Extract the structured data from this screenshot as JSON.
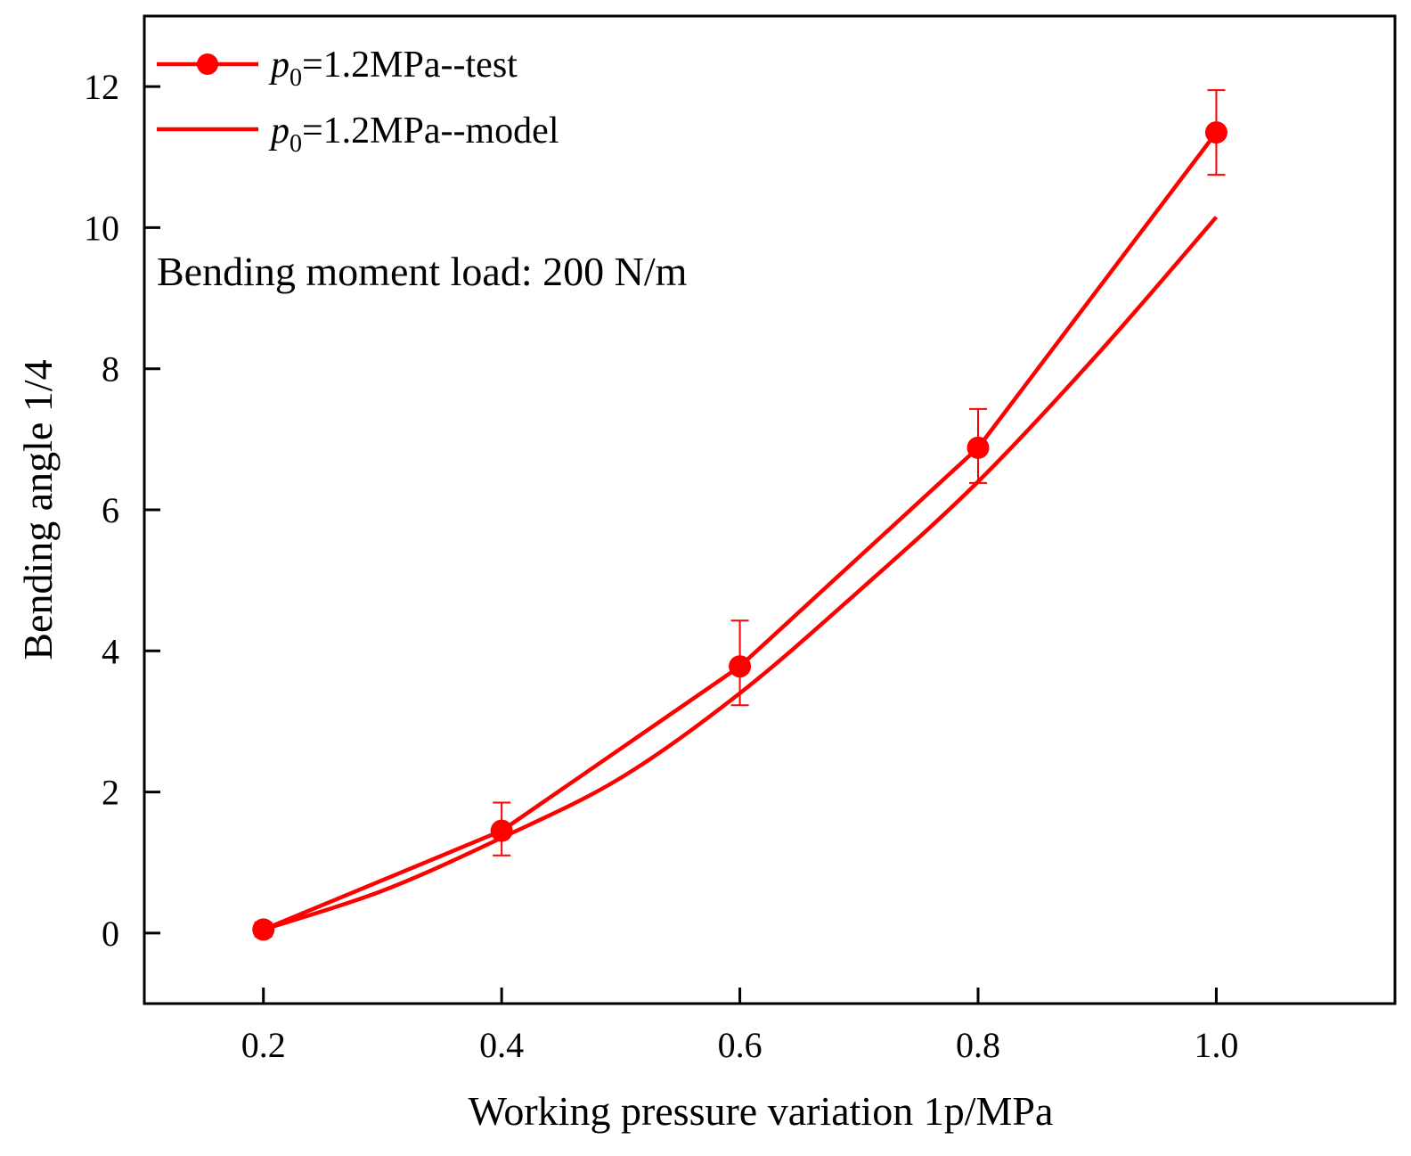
{
  "chart_data": {
    "type": "line",
    "xlabel": "Working pressure variation  1p/MPa",
    "ylabel": "Bending angle  1/4",
    "xlim": [
      0.1,
      1.15
    ],
    "ylim": [
      -1,
      13
    ],
    "x_ticks": [
      0.2,
      0.4,
      0.6,
      0.8,
      1.0
    ],
    "x_tick_labels": [
      "0.2",
      "0.4",
      "0.6",
      "0.8",
      "1.0"
    ],
    "y_ticks": [
      0,
      2,
      4,
      6,
      8,
      10,
      12
    ],
    "y_tick_labels": [
      "0",
      "2",
      "4",
      "6",
      "8",
      "10",
      "12"
    ],
    "grid": false,
    "legend_position": "top-left",
    "annotation": "Bending moment load: 200 N/m",
    "series": [
      {
        "name": "p0=1.2MPa--test",
        "legend_main": "p",
        "legend_sub": "0",
        "legend_rest": "=1.2MPa--test",
        "color": "#ff0000",
        "marker": "circle",
        "x": [
          0.2,
          0.4,
          0.6,
          0.8,
          1.0
        ],
        "y": [
          0.05,
          1.45,
          3.78,
          6.88,
          11.35
        ],
        "err_low": [
          0.1,
          0.35,
          0.55,
          0.5,
          0.6
        ],
        "err_high": [
          0.1,
          0.4,
          0.65,
          0.55,
          0.6
        ]
      },
      {
        "name": "p0=1.2MPa--model",
        "legend_main": "p",
        "legend_sub": "0",
        "legend_rest": "=1.2MPa--model",
        "color": "#ff0000",
        "marker": "none",
        "x": [
          0.2,
          0.3,
          0.4,
          0.5,
          0.6,
          0.7,
          0.8,
          0.9,
          1.0
        ],
        "y": [
          0.05,
          0.6,
          1.35,
          2.2,
          3.4,
          4.85,
          6.4,
          8.2,
          10.15
        ]
      }
    ]
  }
}
